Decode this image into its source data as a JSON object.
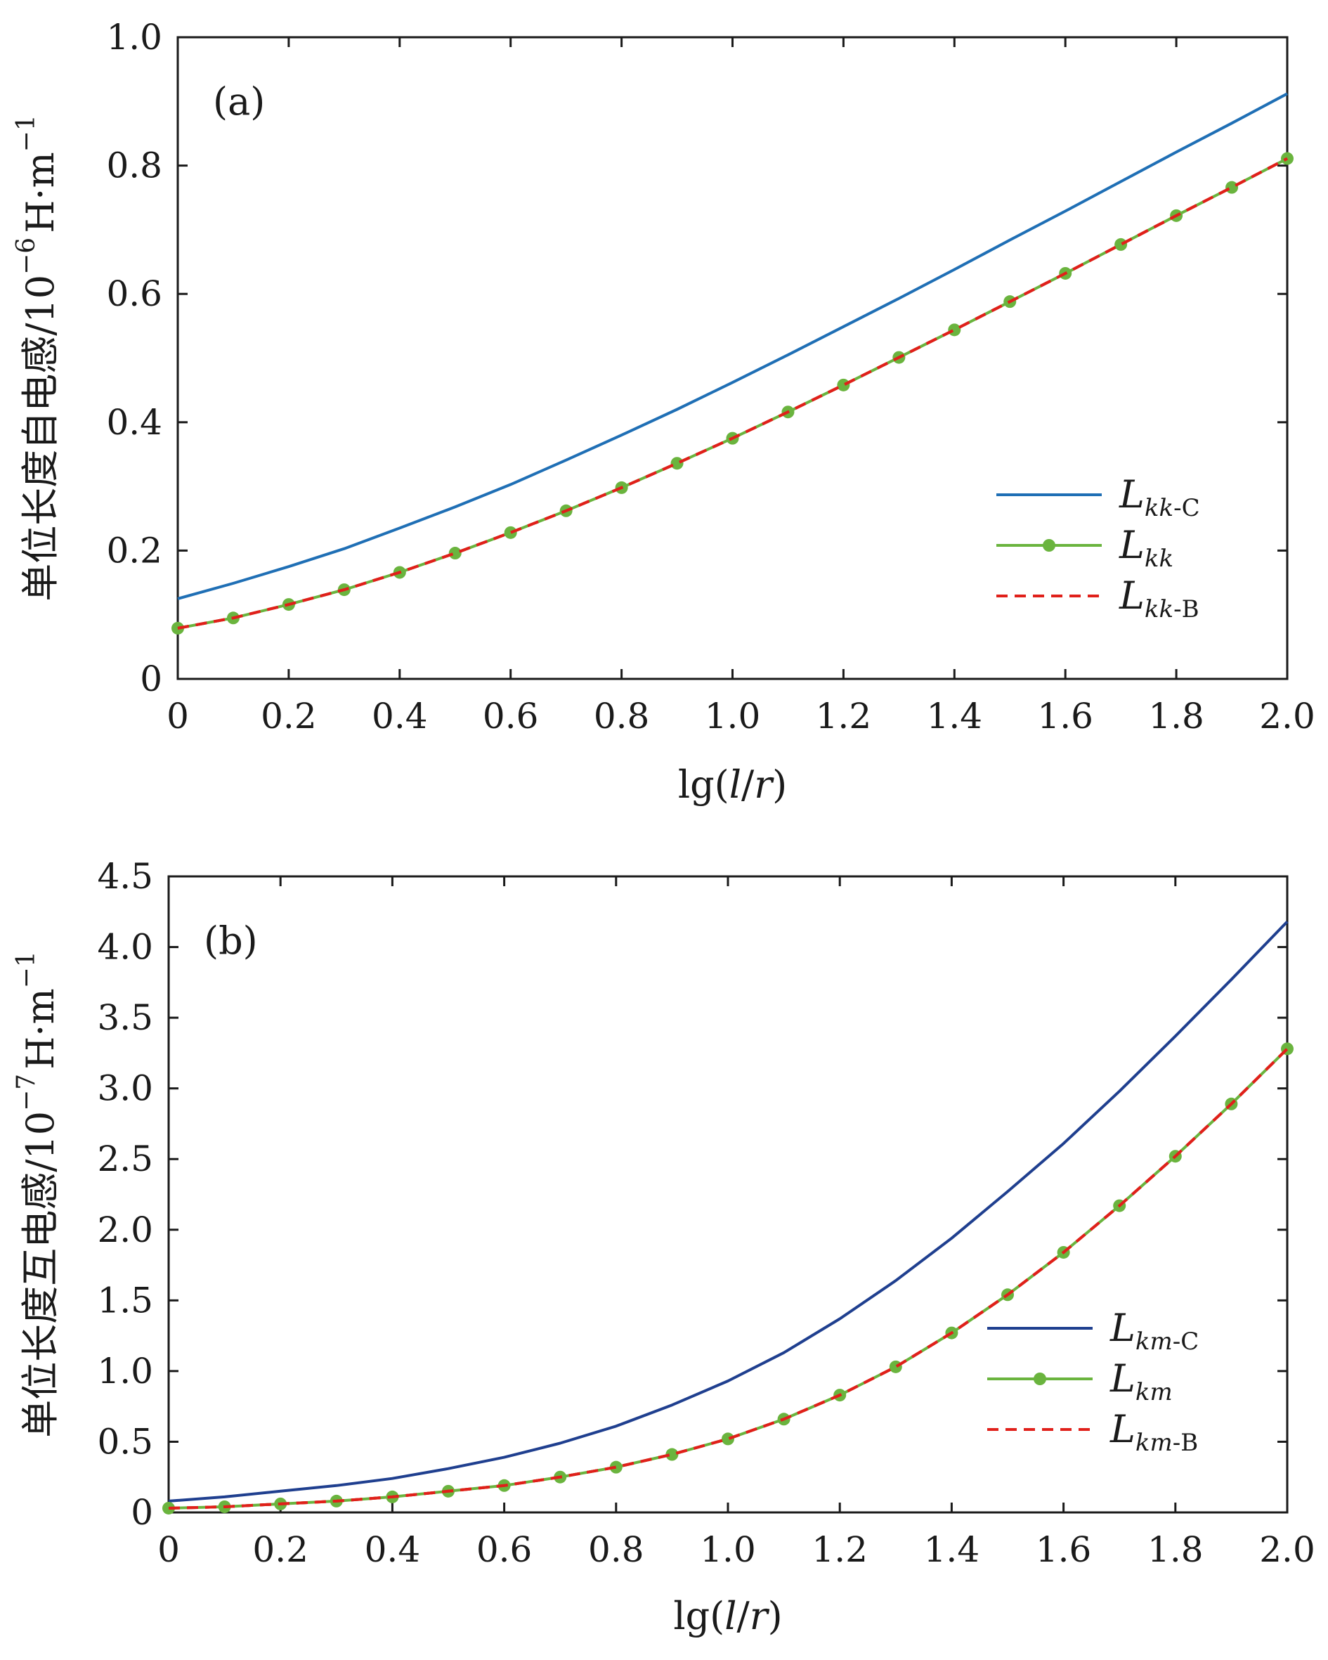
{
  "chart_data": [
    {
      "type": "line",
      "panel_label": "(a)",
      "xlabel_prefix": "lg(",
      "xlabel_l": "l",
      "xlabel_slash": "/",
      "xlabel_r": "r",
      "xlabel_suffix": ")",
      "ylabel_main": "单位长度自电感/10",
      "ylabel_exp": "−6",
      "ylabel_unit": "H·m",
      "ylabel_unit_exp": "−1",
      "xlim": [
        0,
        2.0
      ],
      "ylim": [
        0,
        1.0
      ],
      "x_ticks": [
        "0",
        "0.2",
        "0.4",
        "0.6",
        "0.8",
        "1.0",
        "1.2",
        "1.4",
        "1.6",
        "1.8",
        "2.0"
      ],
      "y_ticks": [
        "0",
        "0.2",
        "0.4",
        "0.6",
        "0.8",
        "1.0"
      ],
      "legend_position": "lower-right",
      "series": [
        {
          "legend_main": "L",
          "legend_sub": "kk",
          "legend_sub_suffix": "-C",
          "color": "#1f6fb5",
          "style": "solid",
          "markers": false,
          "x": [
            0,
            0.1,
            0.2,
            0.3,
            0.4,
            0.5,
            0.6,
            0.7,
            0.8,
            0.9,
            1.0,
            1.1,
            1.2,
            1.3,
            1.4,
            1.5,
            1.6,
            1.7,
            1.8,
            1.9,
            2.0
          ],
          "y": [
            0.125,
            0.149,
            0.175,
            0.203,
            0.235,
            0.268,
            0.303,
            0.341,
            0.38,
            0.42,
            0.462,
            0.505,
            0.549,
            0.593,
            0.638,
            0.684,
            0.729,
            0.775,
            0.821,
            0.866,
            0.912
          ]
        },
        {
          "legend_main": "L",
          "legend_sub": "kk",
          "legend_sub_suffix": "",
          "color": "#6ab43e",
          "style": "solid",
          "markers": true,
          "x": [
            0,
            0.1,
            0.2,
            0.3,
            0.4,
            0.5,
            0.6,
            0.7,
            0.8,
            0.9,
            1.0,
            1.1,
            1.2,
            1.3,
            1.4,
            1.5,
            1.6,
            1.7,
            1.8,
            1.9,
            2.0
          ],
          "y": [
            0.079,
            0.095,
            0.116,
            0.139,
            0.166,
            0.196,
            0.228,
            0.262,
            0.298,
            0.336,
            0.375,
            0.416,
            0.458,
            0.501,
            0.544,
            0.588,
            0.632,
            0.677,
            0.722,
            0.766,
            0.811
          ]
        },
        {
          "legend_main": "L",
          "legend_sub": "kk",
          "legend_sub_suffix": "-B",
          "color": "#e0201a",
          "style": "dashed",
          "markers": false,
          "x": [
            0,
            0.1,
            0.2,
            0.3,
            0.4,
            0.5,
            0.6,
            0.7,
            0.8,
            0.9,
            1.0,
            1.1,
            1.2,
            1.3,
            1.4,
            1.5,
            1.6,
            1.7,
            1.8,
            1.9,
            2.0
          ],
          "y": [
            0.079,
            0.095,
            0.116,
            0.139,
            0.166,
            0.196,
            0.228,
            0.262,
            0.298,
            0.336,
            0.375,
            0.416,
            0.458,
            0.501,
            0.544,
            0.588,
            0.632,
            0.677,
            0.722,
            0.766,
            0.811
          ]
        }
      ]
    },
    {
      "type": "line",
      "panel_label": "(b)",
      "xlabel_prefix": "lg(",
      "xlabel_l": "l",
      "xlabel_slash": "/",
      "xlabel_r": "r",
      "xlabel_suffix": ")",
      "ylabel_main": "单位长度互电感/10",
      "ylabel_exp": "−7",
      "ylabel_unit": "H·m",
      "ylabel_unit_exp": "−1",
      "xlim": [
        0,
        2.0
      ],
      "ylim": [
        0,
        4.5
      ],
      "x_ticks": [
        "0",
        "0.2",
        "0.4",
        "0.6",
        "0.8",
        "1.0",
        "1.2",
        "1.4",
        "1.6",
        "1.8",
        "2.0"
      ],
      "y_ticks": [
        "0",
        "0.5",
        "1.0",
        "1.5",
        "2.0",
        "2.5",
        "3.0",
        "3.5",
        "4.0",
        "4.5"
      ],
      "legend_position": "lower-right",
      "series": [
        {
          "legend_main": "L",
          "legend_sub": "km",
          "legend_sub_suffix": "-C",
          "color": "#1f3f8f",
          "style": "solid",
          "markers": false,
          "x": [
            0,
            0.1,
            0.2,
            0.3,
            0.4,
            0.5,
            0.6,
            0.7,
            0.8,
            0.9,
            1.0,
            1.1,
            1.2,
            1.3,
            1.4,
            1.5,
            1.6,
            1.7,
            1.8,
            1.9,
            2.0
          ],
          "y": [
            0.08,
            0.11,
            0.15,
            0.19,
            0.24,
            0.31,
            0.39,
            0.49,
            0.61,
            0.76,
            0.93,
            1.13,
            1.37,
            1.64,
            1.94,
            2.27,
            2.61,
            2.98,
            3.37,
            3.77,
            4.18
          ]
        },
        {
          "legend_main": "L",
          "legend_sub": "km",
          "legend_sub_suffix": "",
          "color": "#6ab43e",
          "style": "solid",
          "markers": true,
          "x": [
            0,
            0.1,
            0.2,
            0.3,
            0.4,
            0.5,
            0.6,
            0.7,
            0.8,
            0.9,
            1.0,
            1.1,
            1.2,
            1.3,
            1.4,
            1.5,
            1.6,
            1.7,
            1.8,
            1.9,
            2.0
          ],
          "y": [
            0.03,
            0.04,
            0.06,
            0.08,
            0.11,
            0.15,
            0.19,
            0.25,
            0.32,
            0.41,
            0.52,
            0.66,
            0.83,
            1.03,
            1.27,
            1.54,
            1.84,
            2.17,
            2.52,
            2.89,
            3.28
          ]
        },
        {
          "legend_main": "L",
          "legend_sub": "km",
          "legend_sub_suffix": "-B",
          "color": "#e0201a",
          "style": "dashed",
          "markers": false,
          "x": [
            0,
            0.1,
            0.2,
            0.3,
            0.4,
            0.5,
            0.6,
            0.7,
            0.8,
            0.9,
            1.0,
            1.1,
            1.2,
            1.3,
            1.4,
            1.5,
            1.6,
            1.7,
            1.8,
            1.9,
            2.0
          ],
          "y": [
            0.03,
            0.04,
            0.06,
            0.08,
            0.11,
            0.15,
            0.19,
            0.25,
            0.32,
            0.41,
            0.52,
            0.66,
            0.83,
            1.03,
            1.27,
            1.54,
            1.84,
            2.17,
            2.52,
            2.89,
            3.28
          ]
        }
      ]
    }
  ]
}
